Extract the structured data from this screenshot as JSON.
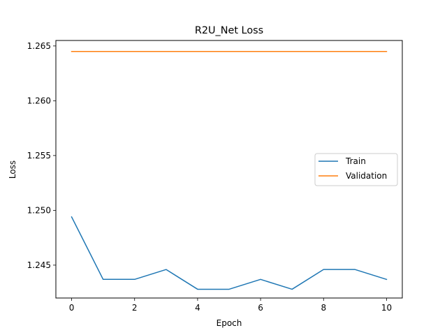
{
  "chart_data": {
    "type": "line",
    "title": "R2U_Net Loss",
    "xlabel": "Epoch",
    "ylabel": "Loss",
    "x": [
      0,
      1,
      2,
      3,
      4,
      5,
      6,
      7,
      8,
      9,
      10
    ],
    "xlim": [
      -0.5,
      10.5
    ],
    "ylim": [
      1.242,
      1.2655
    ],
    "xticks": [
      0,
      2,
      4,
      6,
      8,
      10
    ],
    "yticks": [
      1.245,
      1.25,
      1.255,
      1.26,
      1.265
    ],
    "xtick_labels": [
      "0",
      "2",
      "4",
      "6",
      "8",
      "10"
    ],
    "ytick_labels": [
      "1.245",
      "1.250",
      "1.255",
      "1.260",
      "1.265"
    ],
    "grid": false,
    "legend_position": "center-right",
    "series": [
      {
        "name": "Train",
        "color": "#1f77b4",
        "values": [
          1.2494,
          1.2437,
          1.2437,
          1.2446,
          1.2428,
          1.2428,
          1.2437,
          1.2428,
          1.2446,
          1.2446,
          1.2437
        ]
      },
      {
        "name": "Validation",
        "color": "#ff7f0e",
        "values": [
          1.2645,
          1.2645,
          1.2645,
          1.2645,
          1.2645,
          1.2645,
          1.2645,
          1.2645,
          1.2645,
          1.2645,
          1.2645
        ]
      }
    ]
  }
}
